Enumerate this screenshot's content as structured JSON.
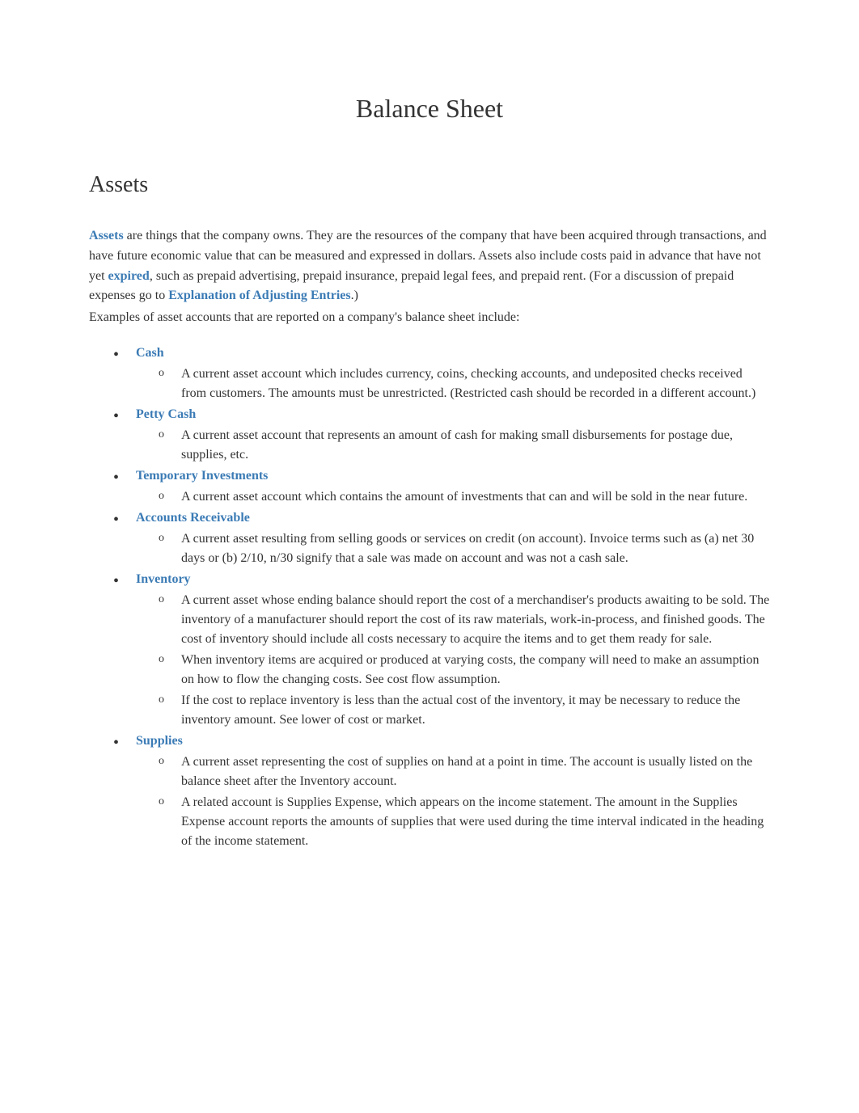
{
  "title": "Balance Sheet",
  "sectionHeading": "Assets",
  "intro": {
    "link1": "Assets",
    "text1": " are things that the company owns. They are the resources of the company that have been acquired through transactions, and have future economic value that can be measured and expressed in dollars. Assets also include costs paid in advance that have not yet ",
    "link2": "expired",
    "text2": ", such as prepaid advertising, prepaid insurance, prepaid legal fees, and prepaid rent. (For a discussion of prepaid expenses go to ",
    "link3": "Explanation of Adjusting Entries",
    "text3": ".)"
  },
  "examplesIntro": "Examples of asset accounts that are reported on a company's balance sheet include:",
  "items": [
    {
      "name": "Cash",
      "descriptions": [
        "A current asset account which includes currency, coins, checking accounts, and undeposited checks received from customers. The amounts must be unrestricted. (Restricted cash should be recorded in a different account.)"
      ]
    },
    {
      "name": "Petty Cash",
      "descriptions": [
        "A current asset account that represents an amount of cash for making small disbursements for postage due, supplies, etc."
      ]
    },
    {
      "name": "Temporary Investments",
      "descriptions": [
        "A current asset account which contains the amount of investments that can and will be sold in the near future."
      ]
    },
    {
      "name": "Accounts Receivable",
      "descriptions": [
        "A current asset resulting from selling goods or services on credit (on account). Invoice terms such as (a) net 30 days or (b) 2/10, n/30 signify that a sale was made on account and was not a cash sale."
      ]
    },
    {
      "name": "Inventory",
      "descriptions": [
        "A current asset whose ending balance should report the cost of a merchandiser's products awaiting to be sold. The inventory of a manufacturer should report the cost of its raw materials, work-in-process, and finished goods. The cost of inventory should include all costs necessary to acquire the items and to get them ready for sale.",
        "When inventory items are acquired or produced at varying costs, the company will need to make an assumption on how to flow the changing costs. See cost flow assumption.",
        "If the cost to replace inventory is less than the actual cost of the inventory, it may be necessary to reduce the inventory amount. See lower of cost or market."
      ]
    },
    {
      "name": "Supplies",
      "descriptions": [
        "A current asset representing the cost of supplies on hand at a point in time. The account is usually listed on the balance sheet after the Inventory account.",
        "A related account is Supplies Expense, which appears on the income statement. The amount in the Supplies Expense account reports the amounts of supplies that were used during the time interval indicated in the heading of the income statement."
      ]
    }
  ],
  "colors": {
    "linkColor": "#3b7bb5",
    "textColor": "#333333",
    "background": "#ffffff"
  }
}
